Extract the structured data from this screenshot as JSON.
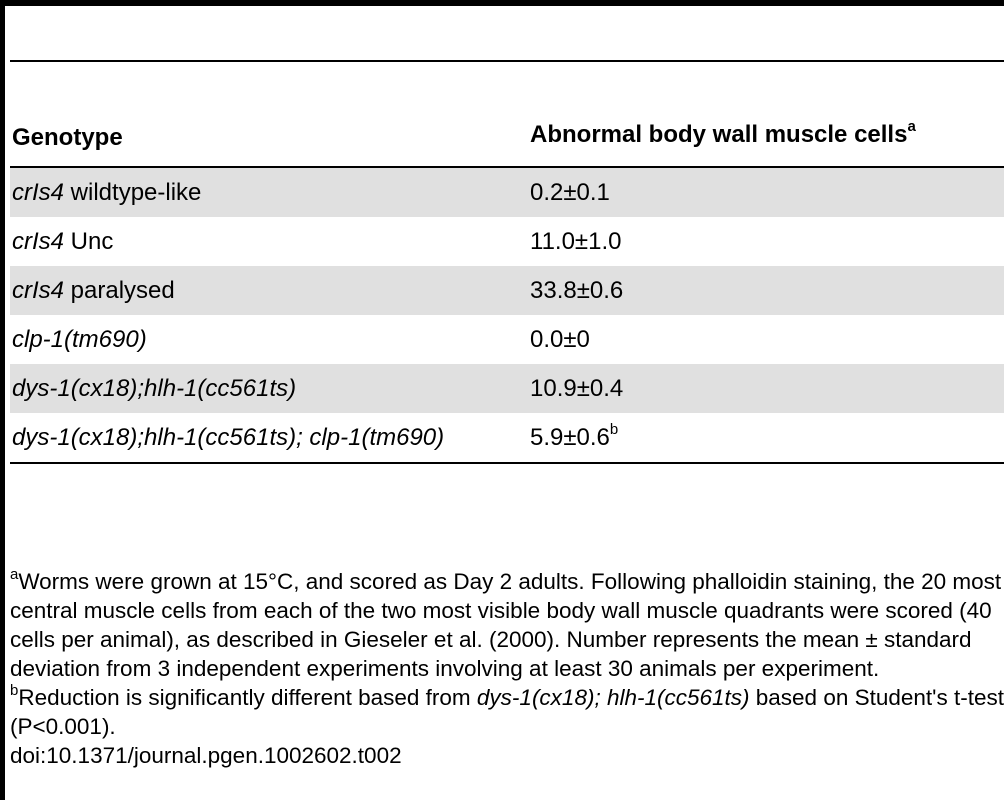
{
  "table": {
    "headers": {
      "genotype": "Genotype",
      "muscle": "Abnormal body wall muscle cells",
      "muscle_sup": "a"
    },
    "rows": [
      {
        "genotype_italic": "crIs4",
        "genotype_plain": " wildtype-like",
        "value": "0.2±0.1",
        "value_sup": ""
      },
      {
        "genotype_italic": "crIs4",
        "genotype_plain": " Unc",
        "value": "11.0±1.0",
        "value_sup": ""
      },
      {
        "genotype_italic": "crIs4",
        "genotype_plain": " paralysed",
        "value": "33.8±0.6",
        "value_sup": ""
      },
      {
        "genotype_italic": "clp-1(tm690)",
        "genotype_plain": "",
        "value": "0.0±0",
        "value_sup": ""
      },
      {
        "genotype_italic": "dys-1(cx18);hlh-1(cc561ts)",
        "genotype_plain": "",
        "value": "10.9±0.4",
        "value_sup": ""
      },
      {
        "genotype_italic": "dys-1(cx18);hlh-1(cc561ts); clp-1(tm690)",
        "genotype_plain": "",
        "value": "5.9±0.6",
        "value_sup": "b"
      }
    ]
  },
  "footnotes": {
    "a": {
      "mark": "a",
      "text": "Worms were grown at 15°C, and scored as Day 2 adults. Following phalloidin staining, the 20 most central muscle cells from each of the two most visible body wall muscle quadrants were scored (40 cells per animal), as described in Gieseler et al. (2000). Number represents the mean ± standard deviation from 3 independent experiments involving at least 30 animals per experiment."
    },
    "b": {
      "mark": "b",
      "text_1": "Reduction is significantly different based from ",
      "text_italic": "dys-1(cx18); hlh-1(cc561ts)",
      "text_2": " based on Student's t-test (P<0.001)."
    },
    "doi": "doi:10.1371/journal.pgen.1002602.t002"
  }
}
